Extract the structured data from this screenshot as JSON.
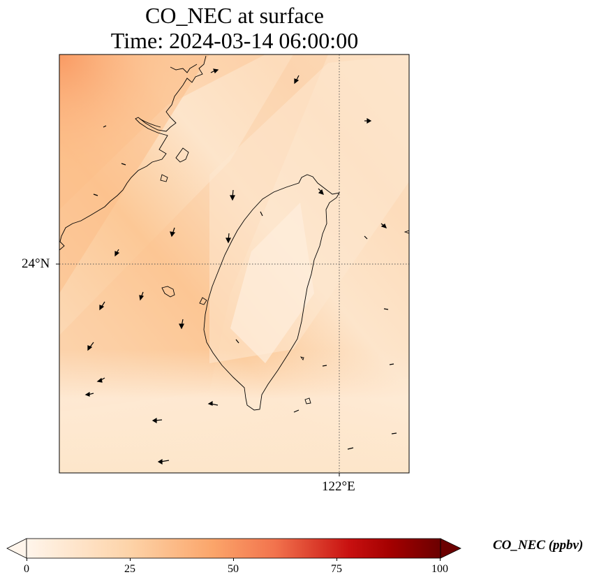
{
  "title": {
    "line1": "CO_NEC at surface",
    "line2": "Time: 2024-03-14 06:00:00"
  },
  "map": {
    "lat_label": "24°N",
    "lon_label": "122°E",
    "gridlines": "dotted",
    "wind_vectors": "black arrows",
    "coastline": "black"
  },
  "colorbar": {
    "label": "CO_NEC (ppbv)",
    "colormap": "Oranges-to-dark-red",
    "range": [
      0,
      100
    ],
    "ticks": [
      "0",
      "25",
      "50",
      "75",
      "100"
    ],
    "extend": "both",
    "colors": [
      "#fff5eb",
      "#fdd0a2",
      "#fdae6b",
      "#f16913",
      "#b30000",
      "#7f0000"
    ]
  }
}
